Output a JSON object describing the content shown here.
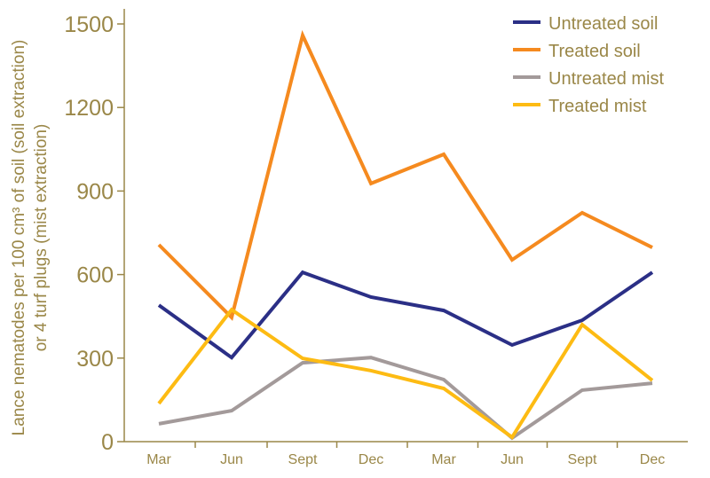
{
  "chart_data": {
    "type": "line",
    "title": "",
    "xlabel": "",
    "ylabel_line1": "Lance nematodes per 100 cm³ of soil (soil extraction)",
    "ylabel_line2": "or 4 turf plugs (mist extraction)",
    "ylim": [
      0,
      1500
    ],
    "yticks": [
      0,
      300,
      600,
      900,
      1200,
      1500
    ],
    "categories": [
      "Mar",
      "Jun",
      "Sept",
      "Dec",
      "Mar",
      "Jun",
      "Sept",
      "Dec"
    ],
    "grid": false,
    "legend_position": "top-right",
    "series": [
      {
        "name": "Untreated soil",
        "color": "#2b2f86",
        "values": [
          490,
          302,
          608,
          519,
          471,
          347,
          436,
          608
        ]
      },
      {
        "name": "Treated soil",
        "color": "#f58a1f",
        "values": [
          707,
          446,
          1459,
          927,
          1032,
          653,
          822,
          697
        ]
      },
      {
        "name": "Untreated mist",
        "color": "#a39a9a",
        "values": [
          64,
          111,
          283,
          302,
          223,
          13,
          185,
          210
        ]
      },
      {
        "name": "Treated mist",
        "color": "#fdbb13",
        "values": [
          137,
          474,
          299,
          255,
          191,
          16,
          420,
          220
        ]
      }
    ],
    "text_color": "#9a8748",
    "axis_color": "#9a8748"
  }
}
